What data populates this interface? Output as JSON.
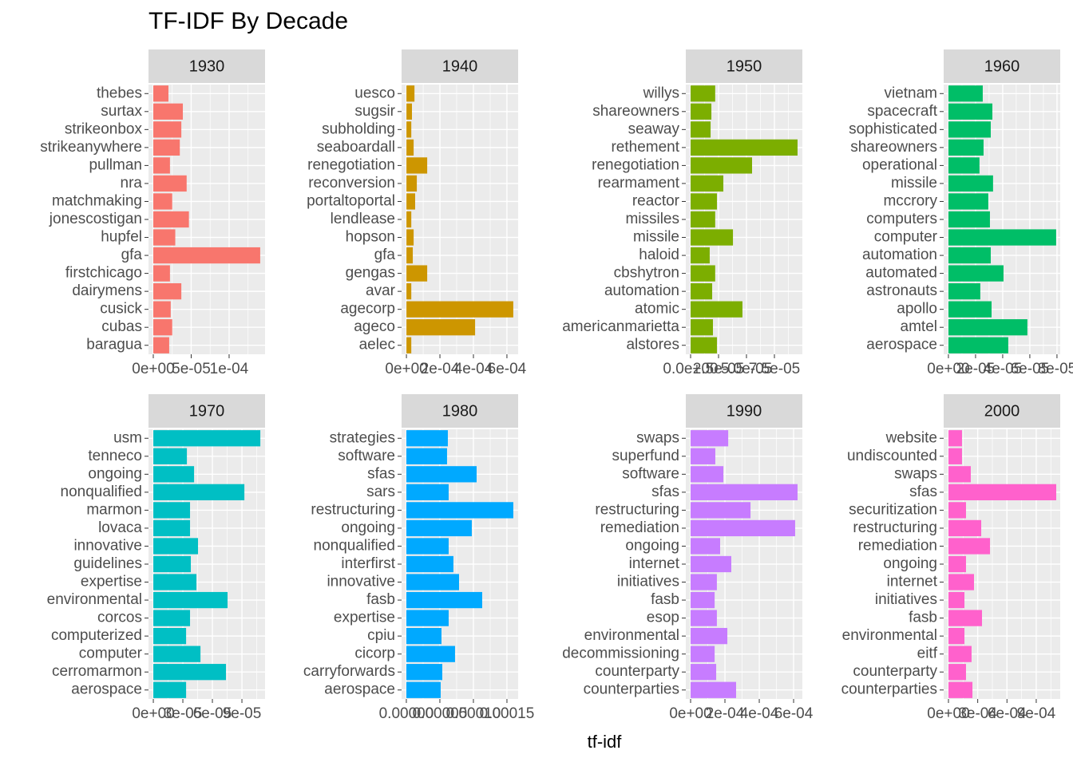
{
  "chart_data": {
    "type": "bar",
    "orientation": "horizontal",
    "grid": true,
    "title": "TF-IDF By Decade",
    "x_label": "tf-idf",
    "panels": [
      {
        "title": "1930",
        "color": "#F8766D",
        "categories": [
          "thebes",
          "surtax",
          "strikeonbox",
          "strikeanywhere",
          "pullman",
          "nra",
          "matchmaking",
          "jonescostigan",
          "hupfel",
          "gfa",
          "firstchicago",
          "dairymens",
          "cusick",
          "cubas",
          "baragua"
        ],
        "values": [
          2e-05,
          3.9e-05,
          3.7e-05,
          3.5e-05,
          2.2e-05,
          4.4e-05,
          2.5e-05,
          4.7e-05,
          2.9e-05,
          0.000141,
          2.2e-05,
          3.7e-05,
          2.3e-05,
          2.5e-05,
          2.1e-05
        ],
        "xlim": [
          -6.3e-06,
          0.0001474
        ],
        "xticks": [
          {
            "value": 0,
            "label": "0e+00"
          },
          {
            "value": 5e-05,
            "label": "5e-05"
          },
          {
            "value": 0.0001,
            "label": "1e-04"
          }
        ]
      },
      {
        "title": "1940",
        "color": "#CD9600",
        "categories": [
          "uesco",
          "sugsir",
          "subholding",
          "seaboardall",
          "renegotiation",
          "reconversion",
          "portaltoportal",
          "lendlease",
          "hopson",
          "gfa",
          "gengas",
          "avar",
          "agecorp",
          "ageco",
          "aelec"
        ],
        "values": [
          4.8e-05,
          3.3e-05,
          2.9e-05,
          4.3e-05,
          0.000124,
          6.2e-05,
          5.2e-05,
          2.9e-05,
          4.3e-05,
          3.8e-05,
          0.000124,
          2.9e-05,
          0.000638,
          0.00041,
          2.9e-05
        ],
        "xlim": [
          -2.9e-05,
          0.000667
        ],
        "xticks": [
          {
            "value": 0,
            "label": "0e+00"
          },
          {
            "value": 0.0002,
            "label": "2e-04"
          },
          {
            "value": 0.0004,
            "label": "4e-04"
          },
          {
            "value": 0.0006,
            "label": "6e-04"
          }
        ]
      },
      {
        "title": "1950",
        "color": "#7CAE00",
        "categories": [
          "willys",
          "shareowners",
          "seaway",
          "rethement",
          "renegotiation",
          "rearmament",
          "reactor",
          "missiles",
          "missile",
          "haloid",
          "cbshytron",
          "automation",
          "atomic",
          "americanmarietta",
          "alstores"
        ],
        "values": [
          2.2e-05,
          1.86e-05,
          1.79e-05,
          9.57e-05,
          5.5e-05,
          2.93e-05,
          2.36e-05,
          2.2e-05,
          3.79e-05,
          1.71e-05,
          2.2e-05,
          1.93e-05,
          4.64e-05,
          2e-05,
          2.36e-05
        ],
        "xlim": [
          -4.3e-06,
          0.0001
        ],
        "xticks": [
          {
            "value": 0,
            "label": "0.0e+00"
          },
          {
            "value": 2.5e-05,
            "label": "2.5e-05"
          },
          {
            "value": 5e-05,
            "label": "5.0e-05"
          },
          {
            "value": 7.5e-05,
            "label": "7.5e-05"
          }
        ]
      },
      {
        "title": "1960",
        "color": "#00BE67",
        "categories": [
          "vietnam",
          "spacecraft",
          "sophisticated",
          "shareowners",
          "operational",
          "missile",
          "mccrory",
          "computers",
          "computer",
          "automation",
          "automated",
          "astronauts",
          "apollo",
          "amtel",
          "aerospace"
        ],
        "values": [
          2.53e-05,
          3.24e-05,
          3.12e-05,
          2.59e-05,
          2.29e-05,
          3.29e-05,
          2.94e-05,
          3.06e-05,
          7.94e-05,
          3.12e-05,
          4.06e-05,
          2.35e-05,
          3.18e-05,
          5.82e-05,
          4.41e-05
        ],
        "xlim": [
          -3.5e-06,
          8.24e-05
        ],
        "xticks": [
          {
            "value": 0,
            "label": "0e+00"
          },
          {
            "value": 2e-05,
            "label": "2e-05"
          },
          {
            "value": 4e-05,
            "label": "4e-05"
          },
          {
            "value": 6e-05,
            "label": "6e-05"
          },
          {
            "value": 8e-05,
            "label": "8e-05"
          }
        ]
      },
      {
        "title": "1970",
        "color": "#00BFC4",
        "categories": [
          "usm",
          "tenneco",
          "ongoing",
          "nonqualified",
          "marmon",
          "lovaca",
          "innovative",
          "guidelines",
          "expertise",
          "environmental",
          "corcos",
          "computerized",
          "computer",
          "cerromarmon",
          "aerospace"
        ],
        "values": [
          0.0001087,
          3.41e-05,
          4.14e-05,
          9.25e-05,
          3.73e-05,
          3.73e-05,
          4.54e-05,
          3.81e-05,
          4.38e-05,
          7.54e-05,
          3.73e-05,
          3.33e-05,
          4.79e-05,
          7.38e-05,
          3.33e-05
        ],
        "xlim": [
          -4.9e-06,
          0.0001135
        ],
        "xticks": [
          {
            "value": 0,
            "label": "0e+00"
          },
          {
            "value": 3e-05,
            "label": "3e-05"
          },
          {
            "value": 6e-05,
            "label": "6e-05"
          },
          {
            "value": 9e-05,
            "label": "9e-05"
          }
        ]
      },
      {
        "title": "1980",
        "color": "#00A9FF",
        "categories": [
          "strategies",
          "software",
          "sfas",
          "sars",
          "restructuring",
          "ongoing",
          "nonqualified",
          "interfirst",
          "innovative",
          "fasb",
          "expertise",
          "cpiu",
          "cicorp",
          "carryforwards",
          "aerospace"
        ],
        "values": [
          6.19e-05,
          6.07e-05,
          0.0001048,
          6.31e-05,
          0.0001595,
          9.76e-05,
          6.31e-05,
          7.02e-05,
          7.86e-05,
          0.0001131,
          6.31e-05,
          5.24e-05,
          7.26e-05,
          5.36e-05,
          5.12e-05
        ],
        "xlim": [
          -7.1e-06,
          0.0001667
        ],
        "xticks": [
          {
            "value": 0,
            "label": "0.00000"
          },
          {
            "value": 5e-05,
            "label": "0.00005"
          },
          {
            "value": 0.0001,
            "label": "0.00010"
          },
          {
            "value": 0.00015,
            "label": "0.00015"
          }
        ]
      },
      {
        "title": "1990",
        "color": "#C77CFF",
        "categories": [
          "swaps",
          "superfund",
          "software",
          "sfas",
          "restructuring",
          "remediation",
          "ongoing",
          "internet",
          "initiatives",
          "fasb",
          "esop",
          "environmental",
          "decommissioning",
          "counterparty",
          "counterparties"
        ],
        "values": [
          0.000219,
          0.000144,
          0.000191,
          0.000623,
          0.000349,
          0.000609,
          0.000172,
          0.000237,
          0.000153,
          0.00014,
          0.000153,
          0.000214,
          0.00014,
          0.000149,
          0.000265
        ],
        "xlim": [
          -2.8e-05,
          0.000651
        ],
        "xticks": [
          {
            "value": 0,
            "label": "0e+00"
          },
          {
            "value": 0.0002,
            "label": "2e-04"
          },
          {
            "value": 0.0004,
            "label": "4e-04"
          },
          {
            "value": 0.0006,
            "label": "6e-04"
          }
        ]
      },
      {
        "title": "2000",
        "color": "#FF61CC",
        "categories": [
          "website",
          "undiscounted",
          "swaps",
          "sfas",
          "securitization",
          "restructuring",
          "remediation",
          "ongoing",
          "internet",
          "initiatives",
          "fasb",
          "environmental",
          "eitf",
          "counterparty",
          "counterparties"
        ],
        "values": [
          0.000139,
          0.000139,
          0.000229,
          0.001105,
          0.00018,
          0.000336,
          0.000426,
          0.00018,
          0.000262,
          0.000164,
          0.000344,
          0.000164,
          0.000237,
          0.00018,
          0.000246
        ],
        "xlim": [
          -4.9e-05,
          0.001146
        ],
        "xticks": [
          {
            "value": 0,
            "label": "0e+00"
          },
          {
            "value": 0.0003,
            "label": "3e-04"
          },
          {
            "value": 0.0006,
            "label": "6e-04"
          },
          {
            "value": 0.0009,
            "label": "9e-04"
          }
        ]
      }
    ]
  }
}
